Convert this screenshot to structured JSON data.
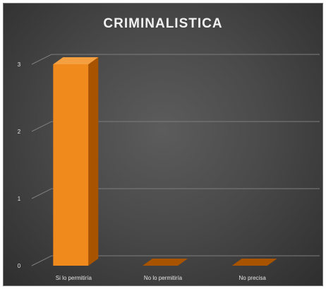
{
  "chart_data": {
    "type": "bar",
    "title": "CRIMINALISTICA",
    "categories": [
      "Si lo permitiría",
      "No lo permitiría",
      "No precisa"
    ],
    "values": [
      3,
      0,
      0
    ],
    "ylim": [
      0,
      3
    ],
    "yticks": [
      "0",
      "1",
      "2",
      "3"
    ],
    "grid": true,
    "bar_color": "#f08a1c",
    "bar_side_color": "#a85300",
    "bar_top_color": "#f5a040"
  }
}
